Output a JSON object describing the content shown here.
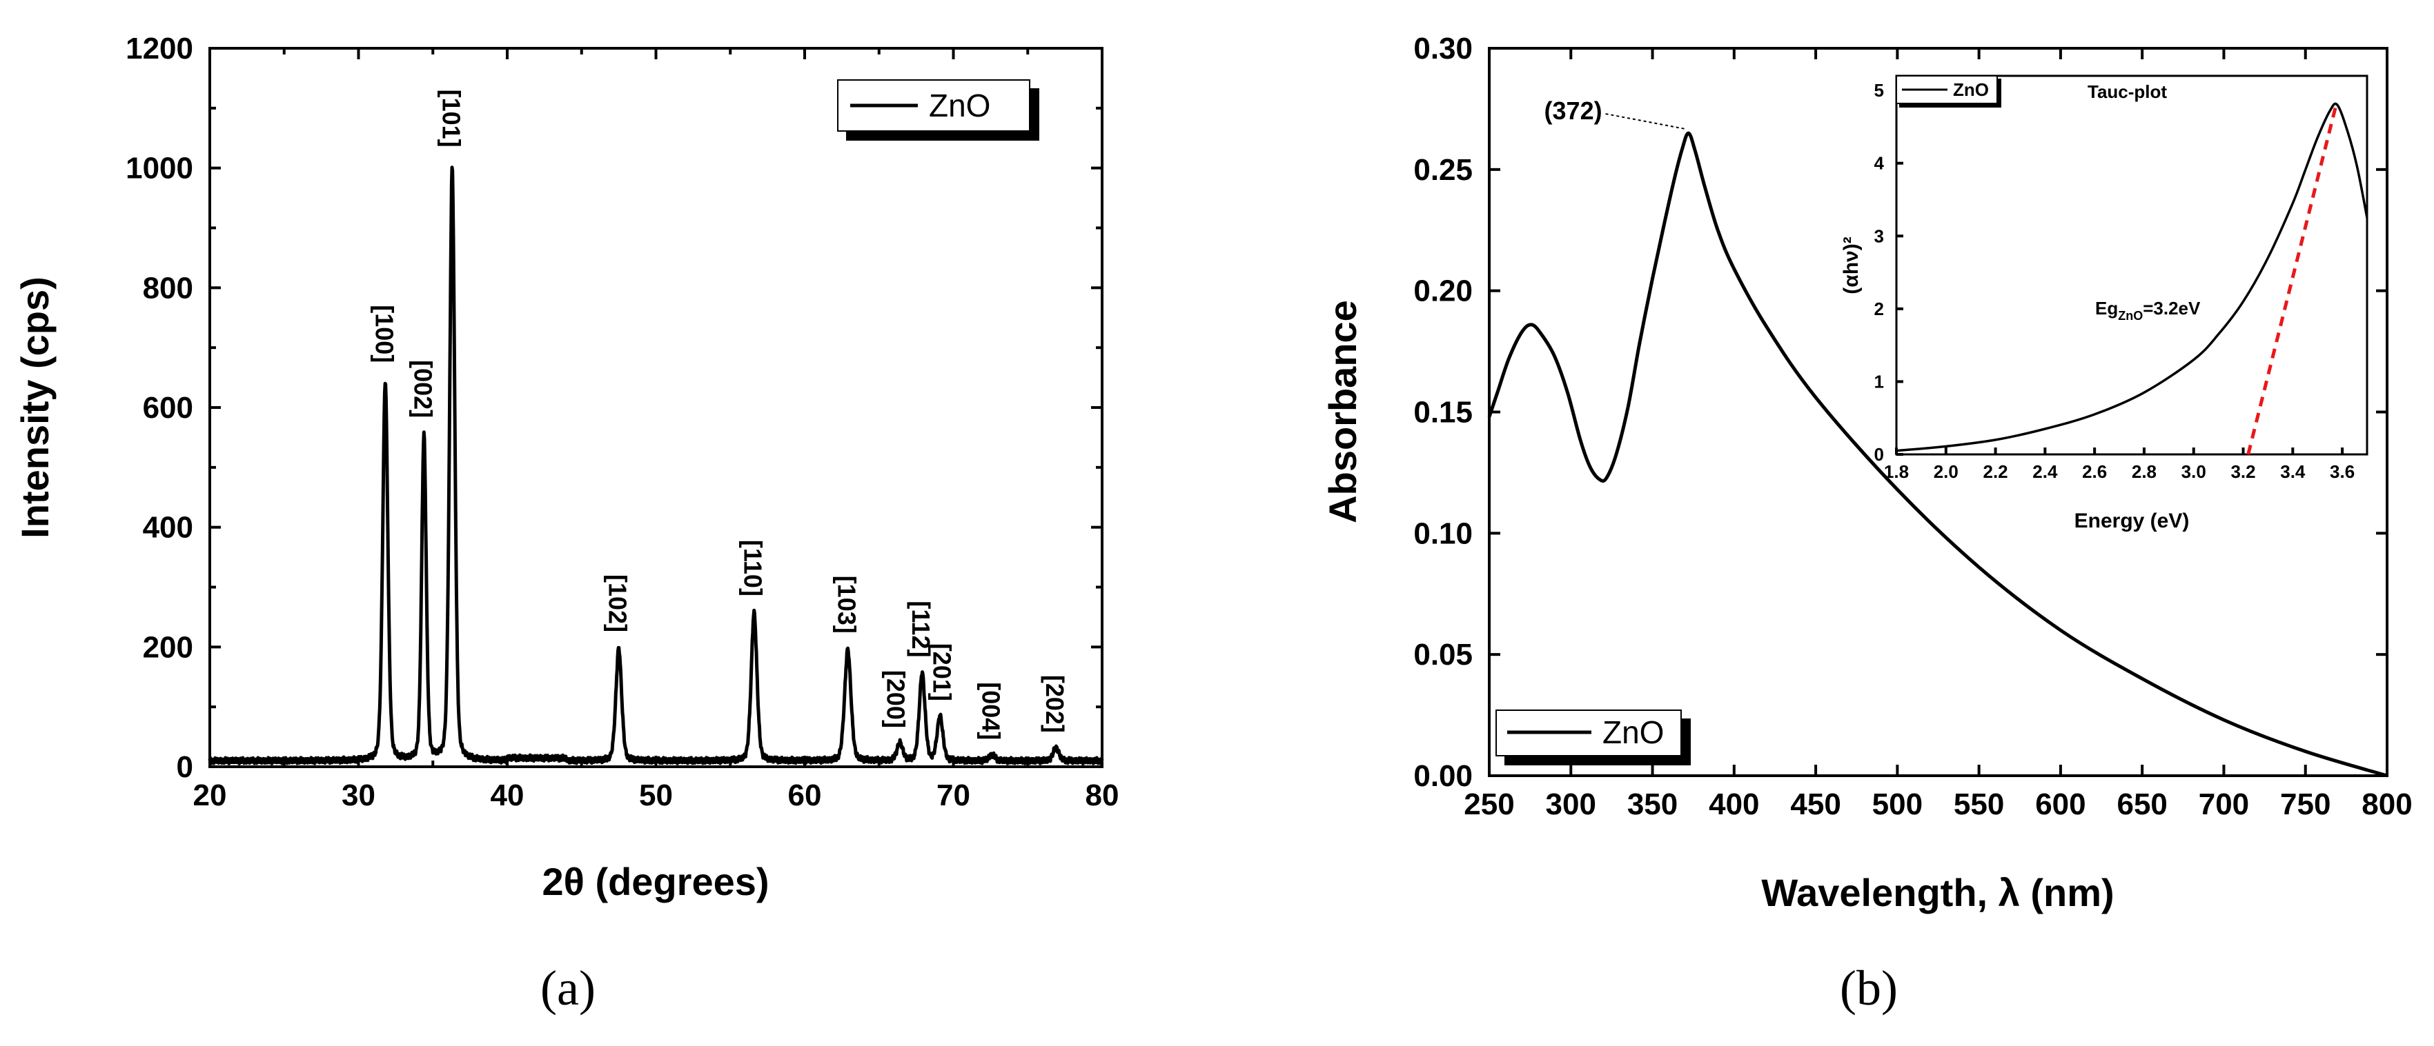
{
  "chart_data": [
    {
      "type": "line",
      "panel": "(a)",
      "xlabel": "2θ (degrees)",
      "ylabel": "Intensity (cps)",
      "xlim": [
        20,
        80
      ],
      "ylim": [
        0,
        1200
      ],
      "xticks": [
        20,
        30,
        40,
        50,
        60,
        70,
        80
      ],
      "yticks": [
        0,
        200,
        400,
        600,
        800,
        1000,
        1200
      ],
      "legend": "ZnO",
      "series": [
        {
          "name": "ZnO",
          "background": 10,
          "peaks": [
            {
              "x": 31.8,
              "y": 640,
              "w": 0.18
            },
            {
              "x": 34.4,
              "y": 548,
              "w": 0.16
            },
            {
              "x": 36.3,
              "y": 1000,
              "w": 0.18
            },
            {
              "x": 47.5,
              "y": 190,
              "w": 0.2
            },
            {
              "x": 56.6,
              "y": 250,
              "w": 0.2
            },
            {
              "x": 62.9,
              "y": 188,
              "w": 0.22
            },
            {
              "x": 66.4,
              "y": 30,
              "w": 0.2
            },
            {
              "x": 67.9,
              "y": 148,
              "w": 0.2
            },
            {
              "x": 69.1,
              "y": 75,
              "w": 0.2
            },
            {
              "x": 72.6,
              "y": 10,
              "w": 0.2
            },
            {
              "x": 76.9,
              "y": 22,
              "w": 0.2
            }
          ]
        }
      ],
      "peak_labels": [
        {
          "label": "[100]",
          "x": 31.8,
          "y": 640
        },
        {
          "label": "[002]",
          "x": 34.4,
          "y": 548
        },
        {
          "label": "[101]",
          "x": 36.3,
          "y": 1000
        },
        {
          "label": "[102]",
          "x": 47.5,
          "y": 190
        },
        {
          "label": "[110]",
          "x": 56.6,
          "y": 250
        },
        {
          "label": "[103]",
          "x": 62.9,
          "y": 188
        },
        {
          "label": "[200]",
          "x": 66.2,
          "y": 30
        },
        {
          "label": "[112]",
          "x": 67.9,
          "y": 148
        },
        {
          "label": "[201]",
          "x": 69.3,
          "y": 75
        },
        {
          "label": "[004]",
          "x": 72.6,
          "y": 10
        },
        {
          "label": "[202]",
          "x": 76.9,
          "y": 22
        }
      ]
    },
    {
      "type": "line",
      "panel": "(b)",
      "xlabel": "Wavelength, λ (nm)",
      "ylabel": "Absorbance",
      "xlim": [
        250,
        800
      ],
      "ylim": [
        0.0,
        0.3
      ],
      "xticks": [
        250,
        300,
        350,
        400,
        450,
        500,
        550,
        600,
        650,
        700,
        750,
        800
      ],
      "yticks": [
        0.0,
        0.05,
        0.1,
        0.15,
        0.2,
        0.25,
        0.3
      ],
      "xtick_labels": [
        "250",
        "300",
        "350",
        "400",
        "450",
        "500",
        "550",
        "600",
        "650",
        "700",
        "750",
        "800"
      ],
      "ytick_labels": [
        "0.00",
        "0.05",
        "0.10",
        "0.15",
        "0.20",
        "0.25",
        "0.30"
      ],
      "legend": "ZnO",
      "annotation": "(372)",
      "series": [
        {
          "name": "ZnO",
          "x": [
            250,
            255,
            262,
            270,
            276,
            282,
            290,
            298,
            306,
            312,
            318,
            322,
            328,
            335,
            342,
            350,
            357,
            363,
            368,
            372,
            376,
            382,
            390,
            400,
            420,
            450,
            500,
            550,
            600,
            650,
            700,
            750,
            800
          ],
          "y": [
            0.148,
            0.158,
            0.172,
            0.183,
            0.186,
            0.182,
            0.173,
            0.158,
            0.138,
            0.127,
            0.122,
            0.123,
            0.133,
            0.152,
            0.178,
            0.205,
            0.227,
            0.245,
            0.258,
            0.265,
            0.258,
            0.243,
            0.225,
            0.209,
            0.185,
            0.156,
            0.118,
            0.086,
            0.06,
            0.04,
            0.023,
            0.01,
            0.0
          ]
        }
      ],
      "inset": {
        "type": "line",
        "title": "Tauc-plot",
        "xlabel": "Energy (eV)",
        "ylabel": "(αhν)²",
        "xlim": [
          1.8,
          3.7
        ],
        "ylim": [
          0,
          5.2
        ],
        "xticks": [
          1.8,
          2.0,
          2.2,
          2.4,
          2.6,
          2.8,
          3.0,
          3.2,
          3.4,
          3.6
        ],
        "xtick_labels": [
          "1.8",
          "2.0",
          "2.2",
          "2.4",
          "2.6",
          "2.8",
          "3.0",
          "3.2",
          "3.4",
          "3.6"
        ],
        "yticks": [
          0,
          1,
          2,
          3,
          4,
          5
        ],
        "legend": "ZnO",
        "annotation_main": "Eg",
        "annotation_sub": "ZnO",
        "annotation_value": "=3.2eV",
        "fit_color": "#e8191b",
        "series": [
          {
            "name": "ZnO",
            "x": [
              1.8,
              2.0,
              2.2,
              2.4,
              2.6,
              2.8,
              3.0,
              3.1,
              3.2,
              3.3,
              3.4,
              3.45,
              3.5,
              3.55,
              3.58,
              3.62,
              3.66,
              3.7
            ],
            "y": [
              0.05,
              0.11,
              0.2,
              0.35,
              0.55,
              0.85,
              1.3,
              1.65,
              2.1,
              2.7,
              3.45,
              3.9,
              4.35,
              4.72,
              4.8,
              4.45,
              3.95,
              3.25
            ]
          }
        ],
        "fit_line": {
          "x": [
            3.22,
            3.575
          ],
          "y": [
            0.0,
            4.8
          ]
        }
      }
    }
  ],
  "captions": {
    "a": "(a)",
    "b": "(b)"
  }
}
